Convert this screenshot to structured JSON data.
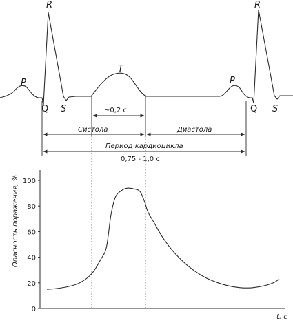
{
  "ecg": {
    "wave_labels": {
      "p_left": "P",
      "r_left": "R",
      "q_left": "Q",
      "s_left": "S",
      "t": "T",
      "p_right": "P",
      "r_right": "R",
      "q_right": "Q",
      "s_right": "S"
    },
    "t_interval": "~0,2 с"
  },
  "phases": {
    "systole": "Систола",
    "diastole": "Диастола",
    "period": "Период кардиоцикла",
    "period_value": "0,75 - 1,0 с"
  },
  "chart_data": {
    "type": "line",
    "ylabel": "Опасность поражения, %",
    "xlabel": "t, c",
    "y_ticks": [
      0,
      20,
      40,
      60,
      80,
      100
    ],
    "ylim": [
      0,
      100
    ],
    "series": [
      {
        "points": [
          [
            0.0,
            15
          ],
          [
            0.06,
            15.5
          ],
          [
            0.14,
            17
          ],
          [
            0.22,
            20
          ],
          [
            0.3,
            27
          ],
          [
            0.36,
            38
          ],
          [
            0.4,
            48
          ],
          [
            0.43,
            73
          ],
          [
            0.46,
            87
          ],
          [
            0.5,
            92
          ],
          [
            0.54,
            94
          ],
          [
            0.58,
            93.5
          ],
          [
            0.62,
            92
          ],
          [
            0.64,
            88
          ],
          [
            0.66,
            82
          ],
          [
            0.68,
            75
          ],
          [
            0.72,
            67
          ],
          [
            0.78,
            55
          ],
          [
            0.86,
            43
          ],
          [
            0.95,
            33
          ],
          [
            1.05,
            25
          ],
          [
            1.15,
            20
          ],
          [
            1.25,
            17
          ],
          [
            1.35,
            16
          ],
          [
            1.45,
            17.5
          ],
          [
            1.52,
            20
          ],
          [
            1.56,
            23
          ]
        ]
      }
    ]
  }
}
